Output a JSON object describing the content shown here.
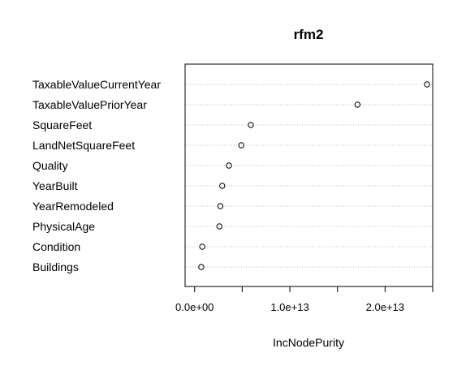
{
  "chart_data": {
    "type": "scatter",
    "title": "rfm2",
    "xlabel": "IncNodePurity",
    "ylabel": "",
    "categories": [
      "TaxableValueCurrentYear",
      "TaxableValuePriorYear",
      "SquareFeet",
      "LandNetSquareFeet",
      "Quality",
      "YearBuilt",
      "YearRemodeled",
      "PhysicalAge",
      "Condition",
      "Buildings"
    ],
    "values": [
      24400000000000,
      17100000000000,
      5900000000000,
      4900000000000,
      3600000000000,
      2900000000000,
      2700000000000,
      2600000000000,
      800000000000,
      700000000000
    ],
    "xlim": [
      -1000000000000,
      25000000000000
    ],
    "xticks": [
      0,
      10000000000000,
      20000000000000
    ],
    "xtick_labels": [
      "0.0e+00",
      "1.0e+13",
      "2.0e+13"
    ],
    "grid": "horizontal dotted"
  }
}
